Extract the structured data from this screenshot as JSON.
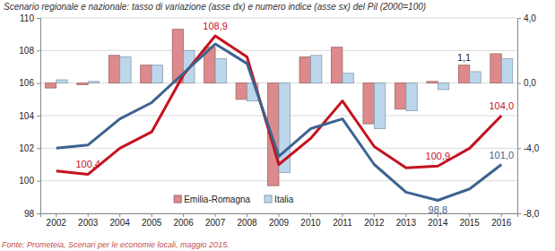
{
  "chart_data": {
    "type": "bar",
    "title": "Scenario regionale e nazionale: tasso di variazione (asse dx) e numero indice (asse sx) del Pil (2000=100)",
    "source": "Fonte: Prometeia, Scenari per le economie locali, maggio 2015.",
    "categories": [
      "2002",
      "2003",
      "2004",
      "2005",
      "2006",
      "2007",
      "2008",
      "2009",
      "2010",
      "2011",
      "2012",
      "2013",
      "2014",
      "2015",
      "2016"
    ],
    "series": [
      {
        "name": "Emilia-Romagna",
        "type": "bar",
        "axis": "y2",
        "color": "#dc8a8c",
        "values": [
          -0.3,
          -0.1,
          1.7,
          1.1,
          3.3,
          2.2,
          -1.0,
          -6.3,
          1.6,
          2.2,
          -2.5,
          -1.6,
          0.1,
          1.1,
          1.8
        ],
        "value_labels": [
          null,
          null,
          null,
          null,
          null,
          null,
          null,
          null,
          null,
          null,
          null,
          null,
          null,
          "1,1",
          null
        ]
      },
      {
        "name": "Italia",
        "type": "bar",
        "axis": "y2",
        "color": "#bcd7ec",
        "values": [
          0.2,
          0.1,
          1.6,
          1.1,
          2.0,
          1.5,
          -1.1,
          -5.5,
          1.7,
          0.6,
          -2.8,
          -1.7,
          -0.4,
          0.7,
          1.5
        ]
      },
      {
        "type": "line",
        "color": "#c4121f",
        "values": [
          100.6,
          100.4,
          102.0,
          103.0,
          106.5,
          108.9,
          107.6,
          101.0,
          102.6,
          104.9,
          102.1,
          100.8,
          100.9,
          102.0,
          104.0
        ],
        "value_labels": [
          null,
          "100,4",
          null,
          null,
          null,
          "108,9",
          null,
          null,
          null,
          null,
          null,
          null,
          "100,9",
          null,
          "104,0"
        ]
      },
      {
        "type": "line",
        "color": "#3d6390",
        "values": [
          102.0,
          102.2,
          103.8,
          104.8,
          106.6,
          108.4,
          107.2,
          101.5,
          103.2,
          103.8,
          101.0,
          99.3,
          98.8,
          99.5,
          101.0
        ],
        "value_labels": [
          null,
          null,
          null,
          null,
          null,
          null,
          null,
          null,
          null,
          null,
          null,
          null,
          "98,8",
          null,
          "101,0"
        ]
      }
    ],
    "ylim": [
      98,
      110
    ],
    "yticks": [
      98,
      100,
      102,
      104,
      106,
      108,
      110
    ],
    "y2lim": [
      -8,
      4
    ],
    "y2ticks": [
      {
        "value": -8,
        "label": "-8,0"
      },
      {
        "value": -4,
        "label": "-4,0"
      },
      {
        "value": 0,
        "label": "0,0"
      },
      {
        "value": 4,
        "label": "4,0"
      }
    ],
    "grid": true,
    "legend": "bottom",
    "data_labels": true
  }
}
